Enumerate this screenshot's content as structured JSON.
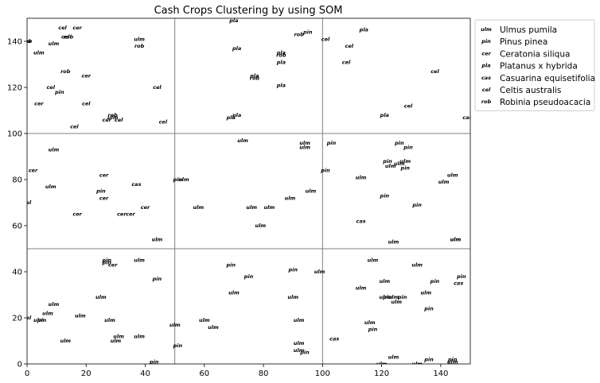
{
  "chart_data": {
    "type": "scatter",
    "title": "Cash Crops Clustering by using SOM",
    "xlabel": "",
    "ylabel": "",
    "xlim": [
      0,
      150
    ],
    "ylim": [
      0,
      150
    ],
    "xticks": [
      0,
      20,
      40,
      60,
      80,
      100,
      120,
      140
    ],
    "yticks": [
      0,
      20,
      40,
      60,
      80,
      100,
      120,
      140
    ],
    "grid_lines_x": [
      50,
      100
    ],
    "grid_lines_y": [
      50,
      100
    ],
    "legend_placement": "outside-right-top",
    "series": [
      {
        "name": "Ulmus pumila",
        "marker": "ulm",
        "points": [
          [
            9,
            139
          ],
          [
            38,
            141
          ],
          [
            4,
            135
          ],
          [
            29,
            107
          ],
          [
            38,
            12
          ],
          [
            50,
            17
          ],
          [
            18,
            21
          ],
          [
            30,
            10
          ],
          [
            31,
            12
          ],
          [
            28,
            19
          ],
          [
            4,
            19
          ],
          [
            60,
            19
          ],
          [
            63,
            16
          ],
          [
            70,
            31
          ],
          [
            90,
            29
          ],
          [
            92,
            19
          ],
          [
            92,
            9
          ],
          [
            92,
            6
          ],
          [
            99,
            40
          ],
          [
            113,
            33
          ],
          [
            116,
            18
          ],
          [
            117,
            45
          ],
          [
            121,
            36
          ],
          [
            121,
            29
          ],
          [
            124,
            29
          ],
          [
            124,
            3
          ],
          [
            124,
            53
          ],
          [
            120,
            0
          ],
          [
            132,
            0
          ],
          [
            125,
            27
          ],
          [
            132,
            43
          ],
          [
            135,
            31
          ],
          [
            144,
            1
          ],
          [
            145,
            54
          ],
          [
            144,
            82
          ],
          [
            145,
            54
          ],
          [
            13,
            10
          ],
          [
            7,
            22
          ],
          [
            9,
            26
          ],
          [
            25,
            29
          ],
          [
            38,
            45
          ],
          [
            9,
            93
          ],
          [
            8,
            77
          ],
          [
            44,
            54
          ],
          [
            53,
            80
          ],
          [
            58,
            68
          ],
          [
            73,
            97
          ],
          [
            76,
            68
          ],
          [
            79,
            60
          ],
          [
            82,
            68
          ],
          [
            89,
            72
          ],
          [
            94,
            96
          ],
          [
            94,
            94
          ],
          [
            113,
            81
          ],
          [
            123,
            86
          ],
          [
            126,
            87
          ],
          [
            128,
            88
          ],
          [
            141,
            79
          ],
          [
            96,
            75
          ]
        ]
      },
      {
        "name": "Pinus pinea",
        "marker": "pin",
        "points": [
          [
            43,
            1
          ],
          [
            51,
            8
          ],
          [
            27,
            44
          ],
          [
            44,
            37
          ],
          [
            69,
            43
          ],
          [
            75,
            38
          ],
          [
            90,
            41
          ],
          [
            94,
            5
          ],
          [
            117,
            15
          ],
          [
            122,
            29
          ],
          [
            127,
            29
          ],
          [
            138,
            36
          ],
          [
            136,
            24
          ],
          [
            136,
            2
          ],
          [
            144,
            2
          ],
          [
            147,
            38
          ],
          [
            5,
            19
          ],
          [
            27,
            45
          ],
          [
            25,
            75
          ],
          [
            51,
            80
          ],
          [
            103,
            96
          ],
          [
            101,
            84
          ],
          [
            121,
            73
          ],
          [
            122,
            88
          ],
          [
            126,
            96
          ],
          [
            129,
            94
          ],
          [
            128,
            85
          ],
          [
            132,
            69
          ],
          [
            11,
            118
          ],
          [
            95,
            144
          ]
        ]
      },
      {
        "name": "Ceratonia siliqua",
        "marker": "cer",
        "points": [
          [
            2,
            84
          ],
          [
            26,
            82
          ],
          [
            17,
            65
          ],
          [
            26,
            72
          ],
          [
            32,
            65
          ],
          [
            35,
            65
          ],
          [
            40,
            68
          ],
          [
            29,
            43
          ],
          [
            4,
            113
          ],
          [
            17,
            146
          ],
          [
            20,
            125
          ],
          [
            27,
            106
          ],
          [
            0,
            140
          ]
        ]
      },
      {
        "name": "Platanus x hybrida",
        "marker": "pla",
        "points": [
          [
            70,
            149
          ],
          [
            71,
            137
          ],
          [
            77,
            125
          ],
          [
            86,
            121
          ],
          [
            86,
            135
          ],
          [
            71,
            108
          ],
          [
            69,
            107
          ],
          [
            86,
            131
          ],
          [
            114,
            145
          ],
          [
            121,
            108
          ]
        ]
      },
      {
        "name": "Casuarina equisetifolia",
        "marker": "cas",
        "points": [
          [
            37,
            78
          ],
          [
            113,
            62
          ],
          [
            104,
            11
          ],
          [
            146,
            35
          ],
          [
            149,
            107
          ]
        ]
      },
      {
        "name": "Celtis australis",
        "marker": "cel",
        "points": [
          [
            12,
            146
          ],
          [
            13,
            142
          ],
          [
            8,
            120
          ],
          [
            20,
            113
          ],
          [
            44,
            120
          ],
          [
            101,
            141
          ],
          [
            108,
            131
          ],
          [
            138,
            127
          ],
          [
            129,
            112
          ],
          [
            109,
            138
          ],
          [
            16,
            103
          ],
          [
            46,
            105
          ],
          [
            0,
            20
          ],
          [
            0,
            70
          ],
          [
            31,
            106
          ]
        ]
      },
      {
        "name": "Robinia pseudoacacia",
        "marker": "rob",
        "points": [
          [
            14,
            142
          ],
          [
            13,
            127
          ],
          [
            29,
            108
          ],
          [
            92,
            143
          ],
          [
            77,
            124
          ],
          [
            38,
            138
          ],
          [
            86,
            134
          ],
          [
            0,
            140
          ]
        ]
      }
    ]
  }
}
